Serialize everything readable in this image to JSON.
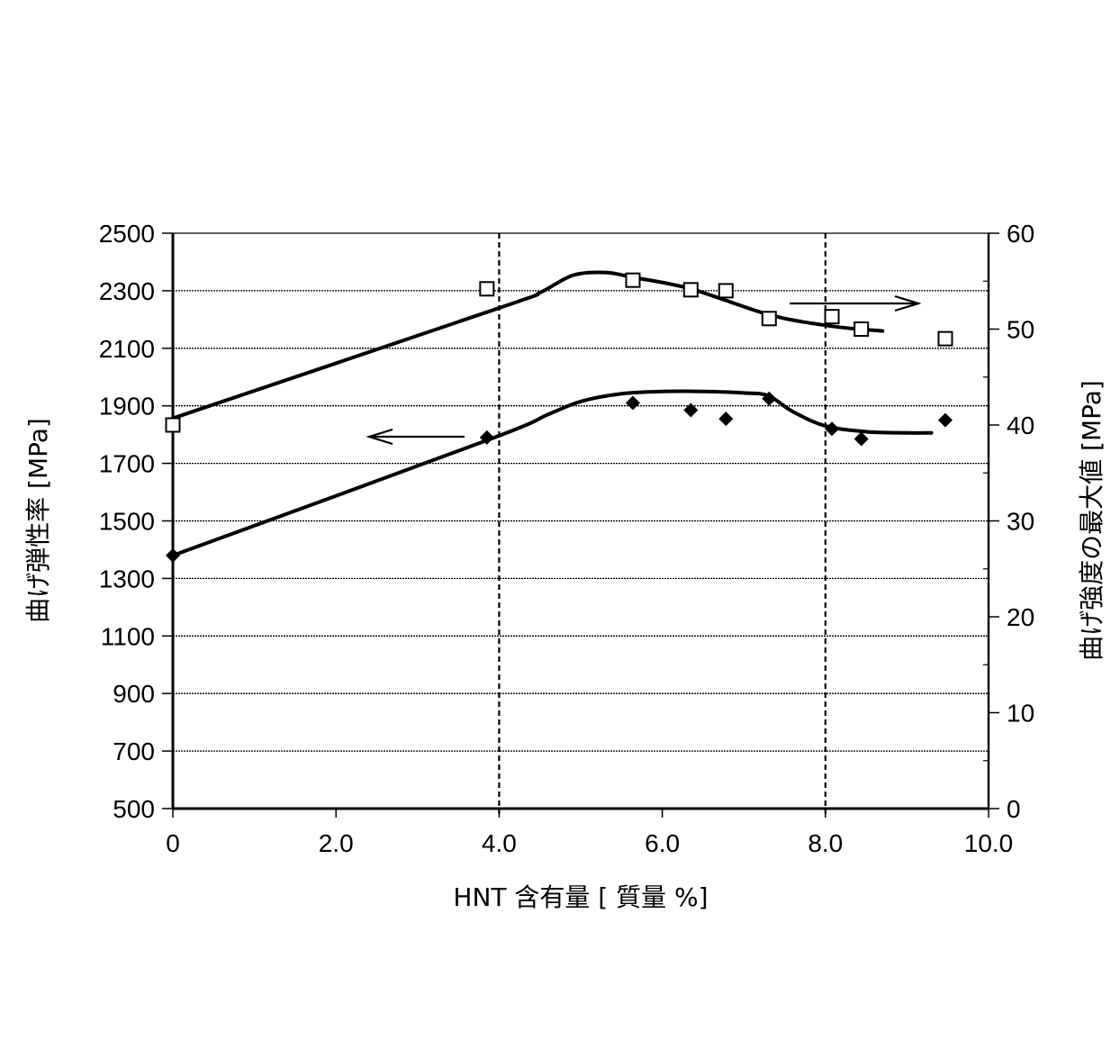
{
  "chart_data": {
    "type": "scatter",
    "title": "",
    "xlabel": "HNT 含有量 [ 質量 %]",
    "ylabel": "曲げ弾性率 [MPa]",
    "ylabel_right": "曲げ強度の最大値 [MPa]",
    "xlim": [
      0,
      10.0
    ],
    "ylim": [
      500,
      2500
    ],
    "ylim_right": [
      0,
      60
    ],
    "x_ticks": [
      "0",
      "2.0",
      "4.0",
      "6.0",
      "8.0",
      "10.0"
    ],
    "x_tick_values": [
      0,
      2,
      4,
      6,
      8,
      10
    ],
    "y_ticks": [
      "500",
      "700",
      "900",
      "1100",
      "1300",
      "1500",
      "1700",
      "1900",
      "2100",
      "2300",
      "2500"
    ],
    "y_tick_values": [
      500,
      700,
      900,
      1100,
      1300,
      1500,
      1700,
      1900,
      2100,
      2300,
      2500
    ],
    "y_right_ticks": [
      "0",
      "10",
      "20",
      "30",
      "40",
      "50",
      "60"
    ],
    "y_right_tick_values": [
      0,
      10,
      20,
      30,
      40,
      50,
      60
    ],
    "grid": true,
    "vertical_reference_lines": [
      4.0,
      8.0
    ],
    "series": [
      {
        "name": "曲げ弾性率",
        "axis": "left",
        "marker": "filled-diamond",
        "x": [
          0,
          3.85,
          5.64,
          6.35,
          6.78,
          7.31,
          8.08,
          8.44,
          9.47
        ],
        "values": [
          1380,
          1790,
          1910,
          1885,
          1855,
          1925,
          1820,
          1785,
          1850
        ],
        "trend_x": [
          0,
          3.85,
          4.6,
          5.0,
          5.5,
          6.0,
          6.5,
          7.0,
          7.3,
          7.6,
          8.0,
          8.5,
          9.0,
          9.3
        ],
        "trend_values": [
          1380,
          1780,
          1870,
          1915,
          1942,
          1950,
          1950,
          1945,
          1935,
          1880,
          1830,
          1810,
          1806,
          1806
        ],
        "arrow_direction": "left"
      },
      {
        "name": "曲げ強度の最大値",
        "axis": "right",
        "marker": "open-square",
        "x": [
          0,
          3.85,
          5.64,
          6.35,
          6.78,
          7.31,
          8.08,
          8.44,
          9.47
        ],
        "values": [
          40.0,
          54.2,
          55.1,
          54.1,
          54.0,
          51.1,
          51.3,
          50.0,
          49.0
        ],
        "trend_x": [
          0,
          4.0,
          4.5,
          4.9,
          5.3,
          5.64,
          6.35,
          7.31,
          8.08,
          8.7
        ],
        "trend_values": [
          40.7,
          52.2,
          53.8,
          55.6,
          55.9,
          55.4,
          54.2,
          51.5,
          50.3,
          49.8
        ],
        "arrow_direction": "right"
      }
    ]
  }
}
